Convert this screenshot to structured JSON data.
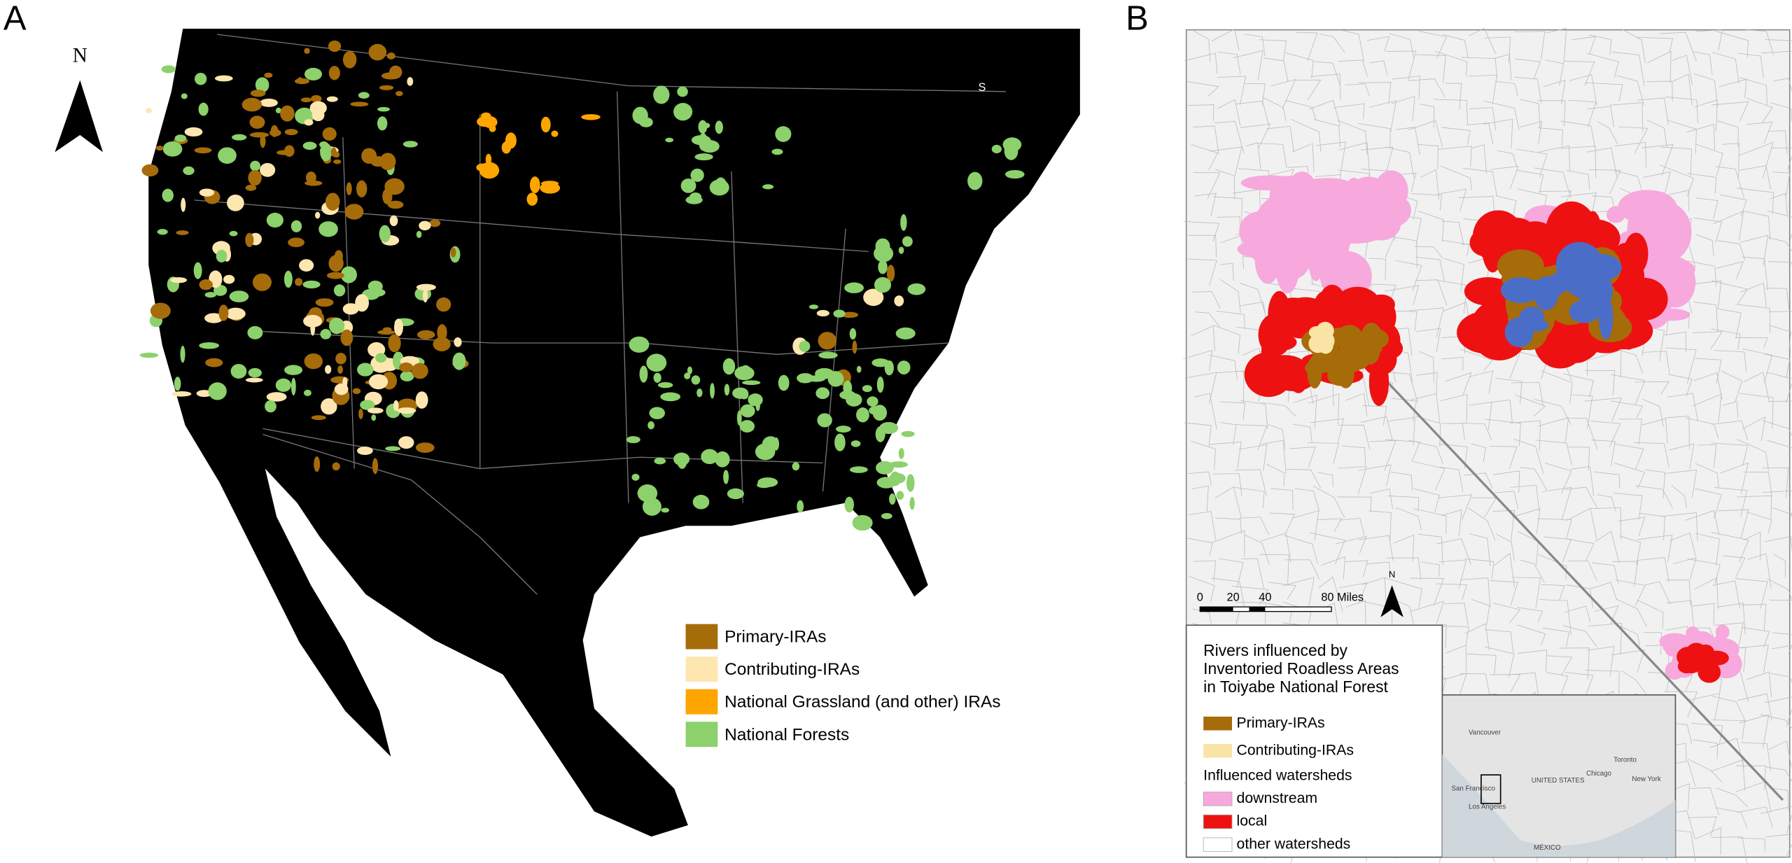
{
  "panel_a": {
    "label": "A",
    "north": "N",
    "map_labels": [
      "S"
    ],
    "legend": [
      {
        "label": "Primary-IRAs",
        "color": "#a66c0a"
      },
      {
        "label": "Contributing-IRAs",
        "color": "#fde6b0"
      },
      {
        "label": "National Grassland (and other) IRAs",
        "color": "#ffa500"
      },
      {
        "label": "National Forests",
        "color": "#8cd16b"
      }
    ]
  },
  "panel_b": {
    "label": "B",
    "north": "N",
    "scale_bar": [
      "0",
      "20",
      "40",
      "80 Miles"
    ],
    "legend_title": [
      "Rivers influenced by",
      "Inventoried Roadless Areas",
      "in Toiyabe National Forest"
    ],
    "legend": [
      {
        "label": "Primary-IRAs",
        "color": "#a66c0a"
      },
      {
        "label": "Contributing-IRAs",
        "color": "#f9e4a6"
      }
    ],
    "legend_subtitle": "Influenced watersheds",
    "watersheds": [
      {
        "label": "downstream",
        "color": "#f7a8dc"
      },
      {
        "label": "local",
        "color": "#ee1111"
      },
      {
        "label": "other watersheds",
        "color": "#ffffff"
      }
    ],
    "inset_labels": [
      "Vancouver",
      "Toronto",
      "Chicago",
      "New York",
      "San Francisco",
      "Los Angeles",
      "UNITED STATES",
      "MÉXICO"
    ]
  }
}
